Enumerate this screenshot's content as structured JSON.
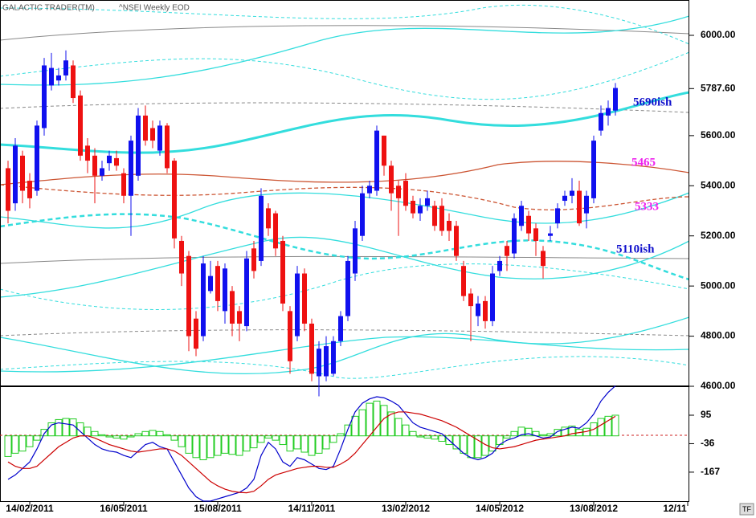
{
  "chart_data": [
    {
      "type": "candlestick",
      "title": "GALACTIC TRADER(TM)",
      "subtitle": "^NSEI Weekly EOD",
      "up_color": "#1010ee",
      "down_color": "#ee1111",
      "ylim": [
        4600,
        6141
      ],
      "yticks": [
        {
          "value": 6000,
          "label": "6000.00"
        },
        {
          "value": 5600,
          "label": "5600.00"
        },
        {
          "value": 5400,
          "label": "5400.00"
        },
        {
          "value": 5200,
          "label": "5200.00"
        },
        {
          "value": 5000,
          "label": "5000.00"
        },
        {
          "value": 4800,
          "label": "4800.00"
        },
        {
          "value": 4600,
          "label": "4600.00"
        }
      ],
      "last_price": {
        "value": 5787.6,
        "label": "5787.60"
      },
      "annotations": [
        {
          "text": "5690ish",
          "color": "#1010cc"
        },
        {
          "text": "5465",
          "color": "#ee22ee"
        },
        {
          "text": "5333",
          "color": "#ee22ee"
        },
        {
          "text": "5110ish",
          "color": "#1010cc"
        }
      ],
      "corner_label": "TF",
      "open": [
        5470,
        5330,
        5520,
        5420,
        5380,
        5630,
        5800,
        5820,
        5840,
        5880,
        5760,
        5560,
        5520,
        5440,
        5490,
        5510,
        5450,
        5360,
        5440,
        5680,
        5630,
        5540,
        5640,
        5500,
        5180,
        5120,
        4870,
        4800,
        4980,
        5080,
        4900,
        4980,
        4900,
        4840,
        5150,
        5100,
        5310,
        5290,
        5180,
        4900,
        4800,
        5050,
        4850,
        4640,
        4640,
        4650,
        4780,
        4880,
        5050,
        5200,
        5370,
        5380,
        5600,
        5480,
        5400,
        5420,
        5340,
        5290,
        5320,
        5320,
        5320,
        5260,
        5240,
        5080,
        4970,
        4880,
        4940,
        4860,
        5060,
        5160,
        5130,
        5240,
        5280,
        5230,
        5140,
        5200,
        5250,
        5340,
        5360,
        5380,
        5290,
        5350,
        5620,
        5680,
        5700,
        null,
        null,
        null,
        null,
        null,
        null,
        null,
        null,
        null,
        null
      ],
      "high": [
        5500,
        5590,
        5540,
        5450,
        5660,
        5910,
        5930,
        5870,
        5940,
        5900,
        5780,
        5590,
        5550,
        5500,
        5540,
        5540,
        5470,
        5600,
        5710,
        5720,
        5660,
        5660,
        5650,
        5510,
        5200,
        5140,
        4900,
        5120,
        5100,
        5100,
        5090,
        5000,
        4920,
        5140,
        5180,
        5390,
        5330,
        5300,
        5200,
        4920,
        5080,
        5070,
        4870,
        4780,
        4800,
        4800,
        4900,
        5120,
        5260,
        5400,
        5420,
        5640,
        5600,
        5500,
        5420,
        5450,
        5360,
        5350,
        5380,
        5340,
        5350,
        5290,
        5260,
        5100,
        4990,
        4960,
        4960,
        5080,
        5120,
        5180,
        5290,
        5340,
        5300,
        5250,
        5160,
        5240,
        5330,
        5380,
        5430,
        5420,
        5380,
        5600,
        5720,
        5740,
        5810,
        null,
        null,
        null,
        null,
        null,
        null,
        null,
        null,
        null,
        null
      ],
      "low": [
        5250,
        5300,
        5330,
        5310,
        5360,
        5600,
        5780,
        5800,
        5820,
        5730,
        5500,
        5450,
        5330,
        5420,
        5460,
        5460,
        5330,
        5200,
        5420,
        5560,
        5550,
        5520,
        5450,
        5150,
        5000,
        4740,
        4720,
        4780,
        4970,
        4900,
        4850,
        4800,
        4780,
        4820,
        5030,
        5080,
        5200,
        5120,
        4900,
        4650,
        4780,
        4820,
        4620,
        4560,
        4620,
        4640,
        4760,
        4860,
        5020,
        5180,
        5350,
        5360,
        5440,
        5300,
        5200,
        5300,
        5270,
        5260,
        5300,
        5220,
        5200,
        5180,
        5100,
        4940,
        4780,
        4840,
        4830,
        4840,
        5040,
        5060,
        5110,
        5220,
        5180,
        5120,
        5030,
        5180,
        5230,
        5320,
        5330,
        5240,
        5230,
        5330,
        5600,
        5640,
        5680,
        null,
        null,
        null,
        null,
        null,
        null,
        null,
        null,
        null,
        null
      ],
      "close": [
        5300,
        5560,
        5380,
        5350,
        5640,
        5880,
        5870,
        5840,
        5900,
        5750,
        5520,
        5500,
        5440,
        5470,
        5520,
        5480,
        5360,
        5580,
        5680,
        5580,
        5580,
        5640,
        5470,
        5190,
        5050,
        4800,
        4750,
        5090,
        5040,
        4940,
        5070,
        4850,
        4850,
        5110,
        5060,
        5360,
        5230,
        5150,
        4930,
        4700,
        5050,
        4850,
        4650,
        4750,
        4760,
        4780,
        4880,
        5100,
        5230,
        5370,
        5400,
        5620,
        5480,
        5370,
        5350,
        5320,
        5290,
        5320,
        5350,
        5240,
        5220,
        5220,
        5120,
        4960,
        4920,
        4930,
        4860,
        5050,
        5100,
        5120,
        5270,
        5320,
        5210,
        5180,
        5080,
        5210,
        5310,
        5360,
        5380,
        5250,
        5360,
        5580,
        5690,
        5710,
        5790,
        null,
        null,
        null,
        null,
        null,
        null,
        null,
        null,
        null,
        null
      ]
    },
    {
      "type": "bar",
      "color": "#22cc22",
      "categories": [
        null,
        null,
        null,
        "14/02/2011",
        null,
        null,
        null,
        null,
        null,
        null,
        null,
        null,
        null,
        null,
        null,
        null,
        "16/05/2011",
        null,
        null,
        null,
        null,
        null,
        null,
        null,
        null,
        null,
        null,
        null,
        null,
        "15/08/2011",
        null,
        null,
        null,
        null,
        null,
        null,
        null,
        null,
        null,
        null,
        null,
        null,
        "14/11/2011",
        null,
        null,
        null,
        null,
        null,
        null,
        null,
        null,
        null,
        null,
        null,
        null,
        "13/02/2012",
        null,
        null,
        null,
        null,
        null,
        null,
        null,
        null,
        null,
        null,
        null,
        null,
        "14/05/2012",
        null,
        null,
        null,
        null,
        null,
        null,
        null,
        null,
        null,
        null,
        null,
        null,
        "13/08/2012",
        null,
        null,
        null,
        null,
        null,
        null,
        null,
        null,
        null,
        null,
        null,
        null,
        "12/11"
      ],
      "ylim": [
        -304,
        228
      ],
      "yticks": [
        95,
        -36,
        -167
      ],
      "values": [
        -95,
        -80,
        -70,
        -50,
        -20,
        30,
        60,
        75,
        80,
        78,
        60,
        40,
        20,
        5,
        -5,
        -10,
        -15,
        -5,
        10,
        20,
        25,
        20,
        5,
        -20,
        -50,
        -80,
        -100,
        -110,
        -100,
        -90,
        -80,
        -85,
        -90,
        -70,
        -55,
        -30,
        -10,
        -20,
        -40,
        -70,
        -60,
        -75,
        -90,
        -80,
        -60,
        -30,
        10,
        50,
        90,
        120,
        150,
        160,
        140,
        110,
        80,
        50,
        20,
        -5,
        -10,
        -15,
        -25,
        -40,
        -60,
        -80,
        -100,
        -100,
        -90,
        -70,
        -40,
        -10,
        20,
        40,
        35,
        20,
        5,
        10,
        30,
        40,
        45,
        30,
        35,
        60,
        80,
        90,
        95,
        null,
        null,
        null,
        null,
        null,
        null,
        null,
        null,
        null,
        null
      ],
      "lines": [
        {
          "color": "#0000cc",
          "values": [
            -200,
            -180,
            -150,
            -120,
            -60,
            10,
            50,
            60,
            55,
            50,
            20,
            -10,
            -40,
            -60,
            -70,
            -75,
            -90,
            -100,
            -70,
            -40,
            -30,
            -50,
            -60,
            -120,
            -180,
            -240,
            -280,
            -300,
            -300,
            -290,
            -280,
            -270,
            -260,
            -240,
            -200,
            -90,
            -30,
            -60,
            -120,
            -140,
            -100,
            -110,
            -130,
            -150,
            -155,
            -140,
            -60,
            30,
            110,
            150,
            170,
            180,
            175,
            160,
            140,
            100,
            60,
            40,
            30,
            20,
            10,
            -20,
            -50,
            -80,
            -100,
            -110,
            -100,
            -80,
            -40,
            -20,
            -10,
            5,
            10,
            0,
            -10,
            -5,
            20,
            30,
            40,
            35,
            60,
            100,
            160,
            200,
            230,
            null,
            null,
            null,
            null,
            null,
            null,
            null,
            null,
            null,
            null
          ]
        },
        {
          "color": "#cc0000",
          "values": [
            -120,
            -140,
            -150,
            -150,
            -140,
            -110,
            -80,
            -50,
            -30,
            -10,
            0,
            0,
            -10,
            -25,
            -40,
            -50,
            -60,
            -70,
            -75,
            -70,
            -65,
            -60,
            -60,
            -70,
            -90,
            -120,
            -150,
            -180,
            -210,
            -230,
            -245,
            -255,
            -260,
            -262,
            -255,
            -230,
            -200,
            -180,
            -170,
            -160,
            -150,
            -145,
            -140,
            -140,
            -145,
            -145,
            -130,
            -110,
            -80,
            -40,
            0,
            40,
            80,
            100,
            110,
            110,
            105,
            100,
            90,
            80,
            70,
            55,
            40,
            20,
            0,
            -20,
            -40,
            -55,
            -60,
            -55,
            -50,
            -40,
            -30,
            -20,
            -15,
            -10,
            -5,
            0,
            10,
            15,
            20,
            30,
            50,
            70,
            90,
            null,
            null,
            null,
            null,
            null,
            null,
            null,
            null,
            null,
            null
          ]
        }
      ]
    }
  ]
}
